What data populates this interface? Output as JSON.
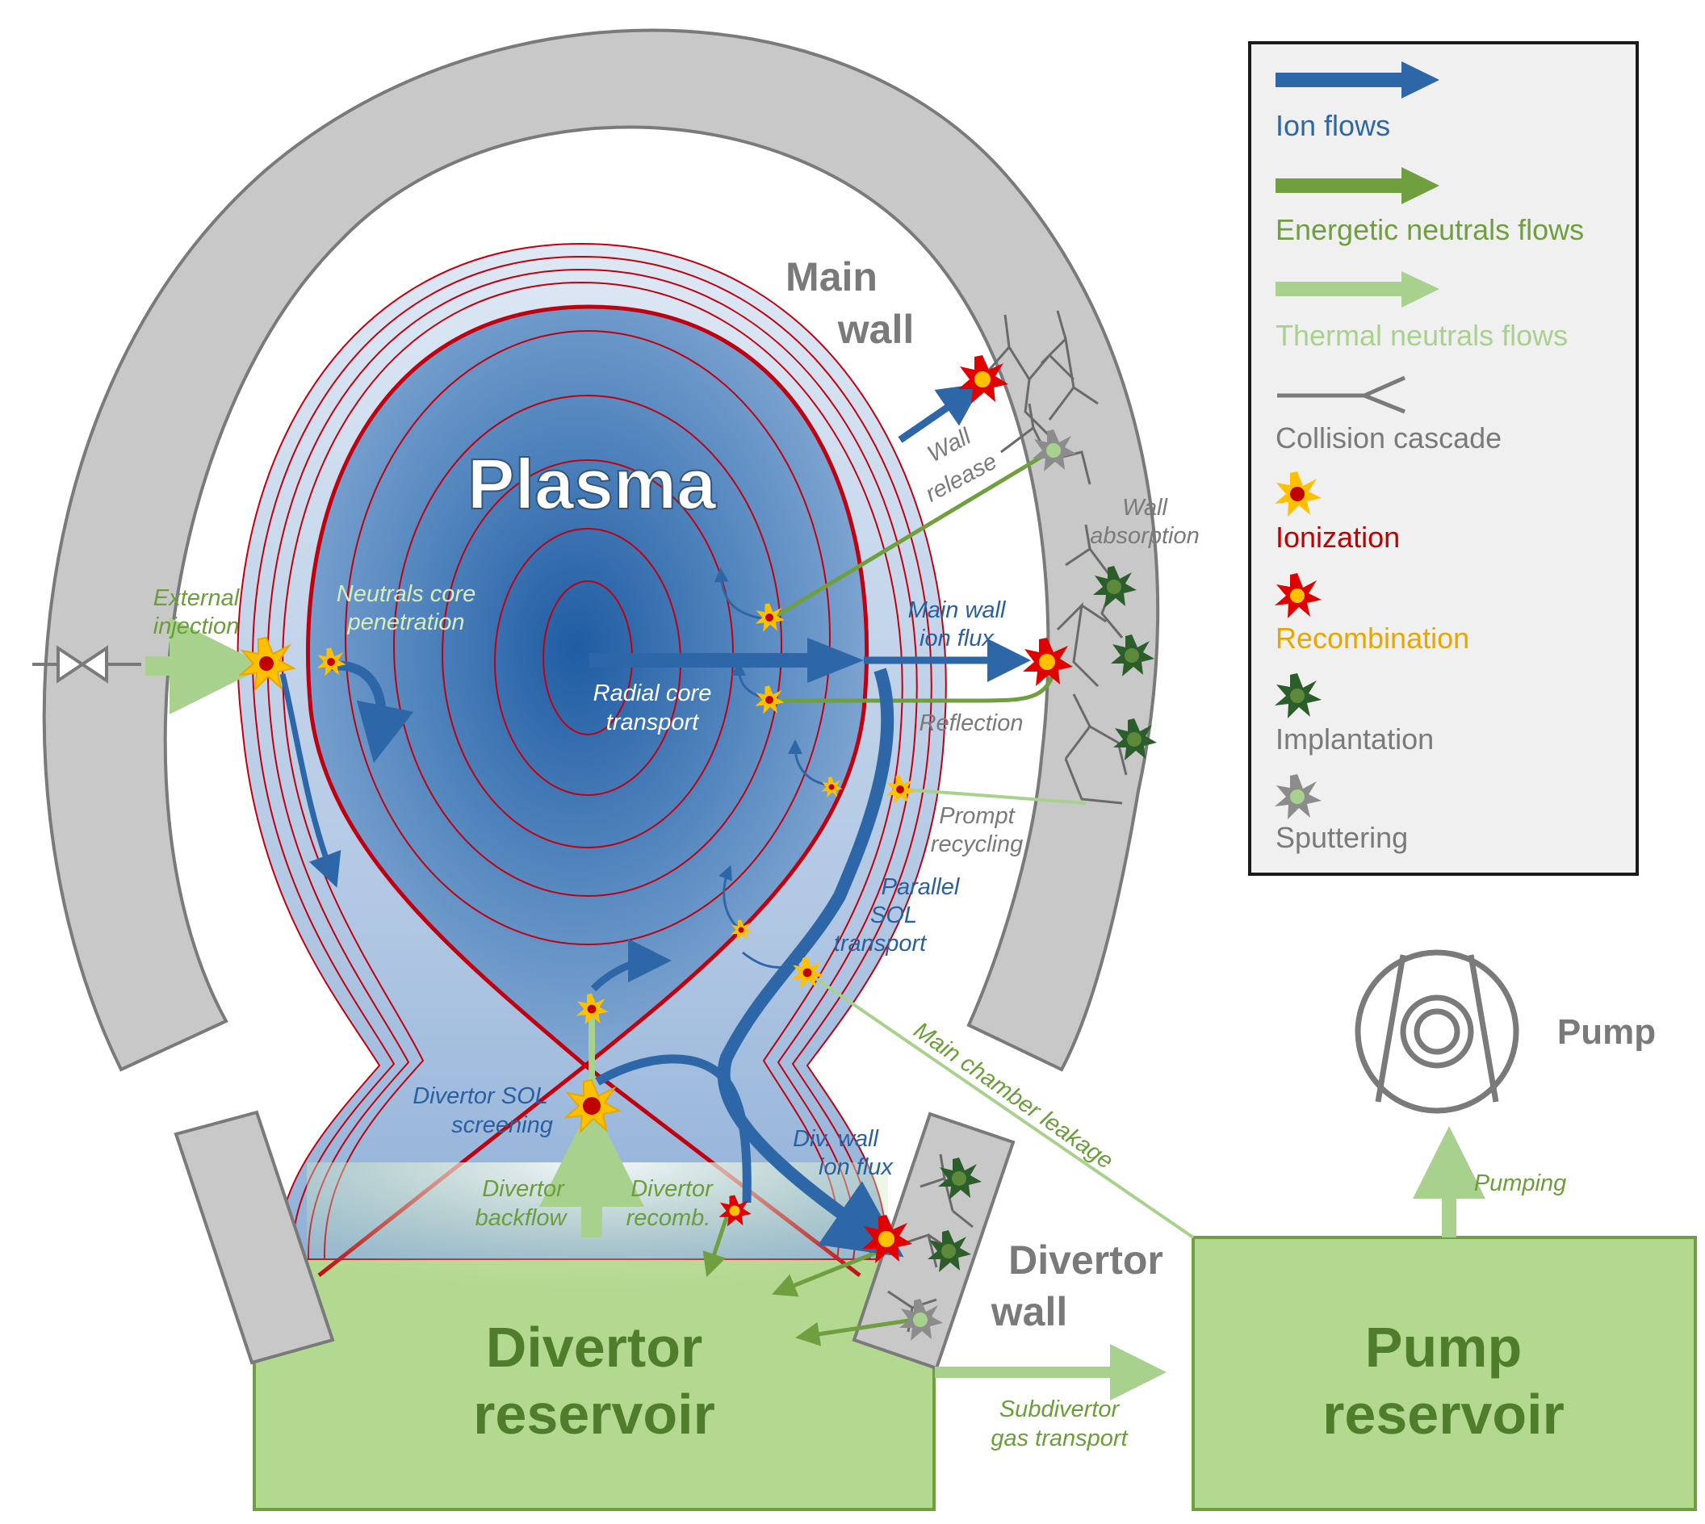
{
  "colors": {
    "ion_flow": "#2e67a8",
    "energetic_neutrals": "#6f9f3e",
    "thermal_neutrals": "#a9d18e",
    "wall_gray": "#c8c8c8",
    "wall_stroke": "#7a7a7a",
    "reservoir_fill": "#b3d88f",
    "reservoir_text": "#4f7d2b",
    "separatrix": "#c0000f",
    "legend_bg": "#f0f0f0"
  },
  "labels": {
    "plasma": "Plasma",
    "main_wall": [
      "Main",
      "wall"
    ],
    "divertor_wall": [
      "Divertor",
      "wall"
    ],
    "pump": "Pump",
    "divertor_reservoir": [
      "Divertor",
      "reservoir"
    ],
    "pump_reservoir": [
      "Pump",
      "reservoir"
    ],
    "external_injection": [
      "External",
      "injection"
    ],
    "neutrals_core_penetration": [
      "Neutrals core",
      "penetration"
    ],
    "radial_core_transport": [
      "Radial core",
      "transport"
    ],
    "wall_release": [
      "Wall",
      "release"
    ],
    "wall_absorption": [
      "Wall",
      "absorption"
    ],
    "main_wall_ion_flux": [
      "Main wall",
      "ion flux"
    ],
    "reflection": "Reflection",
    "prompt_recycling": [
      "Prompt",
      "recycling"
    ],
    "parallel_sol_transport": [
      "Parallel",
      "SOL",
      "transport"
    ],
    "main_chamber_leakage": "Main chamber leakage",
    "divertor_sol_screening": [
      "Divertor SOL",
      "screening"
    ],
    "div_wall_ion_flux": [
      "Div. wall",
      "ion flux"
    ],
    "divertor_backflow": [
      "Divertor",
      "backflow"
    ],
    "divertor_recomb": [
      "Divertor",
      "recomb."
    ],
    "subdivertor_gas_transport": [
      "Subdivertor",
      "gas transport"
    ],
    "pumping": "Pumping"
  },
  "legend": [
    {
      "label": "Ion flows",
      "icon": "blue-arrow-icon",
      "color": "#2e67a8"
    },
    {
      "label": "Energetic neutrals flows",
      "icon": "green-arrow-icon",
      "color": "#6f9f3e"
    },
    {
      "label": "Thermal neutrals flows",
      "icon": "light-green-arrow-icon",
      "color": "#a9d18e"
    },
    {
      "label": "Collision cascade",
      "icon": "collision-cascade-icon",
      "color": "#7a7a7a"
    },
    {
      "label": "Ionization",
      "icon": "ionization-burst-icon",
      "color": "#c00000"
    },
    {
      "label": "Recombination",
      "icon": "recombination-burst-icon",
      "color": "#e8a600"
    },
    {
      "label": "Implantation",
      "icon": "implantation-burst-icon",
      "color": "#7a7a7a"
    },
    {
      "label": "Sputtering",
      "icon": "sputtering-burst-icon",
      "color": "#7a7a7a"
    }
  ]
}
